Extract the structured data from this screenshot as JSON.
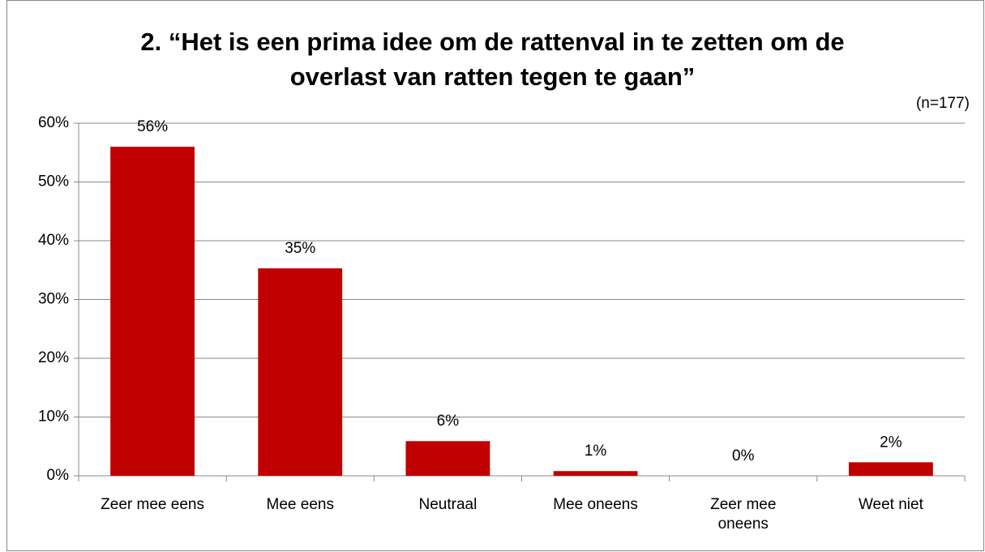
{
  "chart_data": {
    "type": "bar",
    "title": "2. “Het is een prima idee om de rattenval in te zetten om de\noverlast van ratten tegen te gaan”",
    "annotation": "(n=177)",
    "categories": [
      "Zeer mee eens",
      "Mee eens",
      "Neutraal",
      "Mee oneens",
      "Zeer mee\noneens",
      "Weet niet"
    ],
    "values": [
      56,
      35.3,
      5.9,
      0.8,
      0,
      2.3
    ],
    "value_labels": [
      "56%",
      "35%",
      "6%",
      "1%",
      "0%",
      "2%"
    ],
    "color": "#c00000",
    "ylim": [
      0,
      60
    ],
    "yticks": [
      {
        "value": 0,
        "label": "0%"
      },
      {
        "value": 10,
        "label": "10%"
      },
      {
        "value": 20,
        "label": "20%"
      },
      {
        "value": 30,
        "label": "30%"
      },
      {
        "value": 40,
        "label": "40%"
      },
      {
        "value": 50,
        "label": "50%"
      },
      {
        "value": 60,
        "label": "60%"
      }
    ],
    "grid": true
  }
}
